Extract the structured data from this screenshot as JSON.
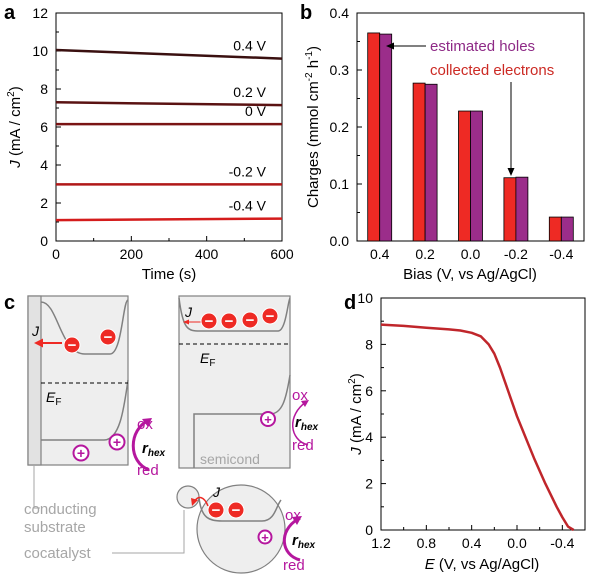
{
  "panels": {
    "a": "a",
    "b": "b",
    "c": "c",
    "d": "d"
  },
  "chart_data": [
    {
      "panel": "a",
      "type": "line",
      "xlabel": "Time (s)",
      "ylabel_var": "J",
      "ylabel_unit": "(mA / cm",
      "ylabel_sup": "2",
      "ylabel_close": ")",
      "xlim": [
        0,
        600
      ],
      "ylim": [
        0,
        12
      ],
      "xticks": [
        "0",
        "200",
        "400",
        "600"
      ],
      "yticks": [
        "0",
        "2",
        "4",
        "6",
        "8",
        "10",
        "12"
      ],
      "series": [
        {
          "name": "0.4 V",
          "x": [
            0,
            600
          ],
          "y": [
            10.05,
            9.6
          ],
          "color": "#3a1010"
        },
        {
          "name": "0.2 V",
          "x": [
            0,
            600
          ],
          "y": [
            7.3,
            7.15
          ],
          "color": "#5a1212"
        },
        {
          "name": "0 V",
          "x": [
            0,
            600
          ],
          "y": [
            6.15,
            6.15
          ],
          "color": "#7a1414"
        },
        {
          "name": "-0.2 V",
          "x": [
            0,
            600
          ],
          "y": [
            2.98,
            2.98
          ],
          "color": "#b01818"
        },
        {
          "name": "-0.4 V",
          "x": [
            0,
            600
          ],
          "y": [
            1.1,
            1.18
          ],
          "color": "#d41c1c"
        }
      ]
    },
    {
      "panel": "b",
      "type": "bar",
      "xlabel": "Bias (V, vs Ag/AgCl)",
      "ylabel": "Charges (mmol cm",
      "ylabel_sup1": "-2",
      "ylabel_mid": " h",
      "ylabel_sup2": "-1",
      "ylabel_close": ")",
      "ylim": [
        0,
        0.4
      ],
      "yticks": [
        "0.0",
        "0.1",
        "0.2",
        "0.3",
        "0.4"
      ],
      "categories": [
        "0.4",
        "0.2",
        "0.0",
        "-0.2",
        "-0.4"
      ],
      "series": [
        {
          "name": "collected electrons",
          "values": [
            0.365,
            0.277,
            0.228,
            0.111,
            0.042
          ],
          "color": "#ee2a24"
        },
        {
          "name": "estimated holes",
          "values": [
            0.363,
            0.275,
            0.228,
            0.112,
            0.042
          ],
          "color": "#9b2d8a"
        }
      ]
    },
    {
      "panel": "d",
      "type": "line",
      "xlabel_var": "E",
      "xlabel_rest": " (V, vs Ag/AgCl)",
      "ylabel_var": "J",
      "ylabel_unit": "(mA / cm",
      "ylabel_sup": "2",
      "ylabel_close": ")",
      "xlim": [
        1.2,
        -0.6
      ],
      "ylim": [
        0,
        10
      ],
      "xticks": [
        "1.2",
        "0.8",
        "0.4",
        "0.0",
        "-0.4"
      ],
      "yticks": [
        "0",
        "2",
        "4",
        "6",
        "8",
        "10"
      ],
      "series": [
        {
          "name": "",
          "color": "#c0262b",
          "x": [
            1.2,
            1.0,
            0.8,
            0.6,
            0.5,
            0.4,
            0.32,
            0.25,
            0.2,
            0.15,
            0.1,
            0.05,
            0.0,
            -0.05,
            -0.1,
            -0.15,
            -0.2,
            -0.25,
            -0.3,
            -0.35,
            -0.4,
            -0.45,
            -0.5
          ],
          "y": [
            8.85,
            8.8,
            8.72,
            8.65,
            8.6,
            8.5,
            8.35,
            8.0,
            7.6,
            7.0,
            6.3,
            5.6,
            4.9,
            4.3,
            3.7,
            3.1,
            2.55,
            2.0,
            1.5,
            1.0,
            0.55,
            0.15,
            0.0
          ]
        }
      ]
    }
  ],
  "diagram": {
    "J": "J",
    "EF_E": "E",
    "EF_sub": "F",
    "ox": "ox",
    "red": "red",
    "r": "r",
    "r_sub": "hex",
    "semicond": "semicond",
    "conducting": "conducting",
    "substrate": "substrate",
    "cocatalyst": "cocatalyst",
    "minus": "−",
    "plus": "+"
  },
  "colors": {
    "red": "#ee2a24",
    "magenta": "#b5179e",
    "purple": "#9b2d8a",
    "gray_fill": "#eeeeee",
    "gray_line": "#808080",
    "label_gray": "#a6a6a6",
    "holes_text": "#8e2a86",
    "electrons_text": "#cc2a24"
  }
}
